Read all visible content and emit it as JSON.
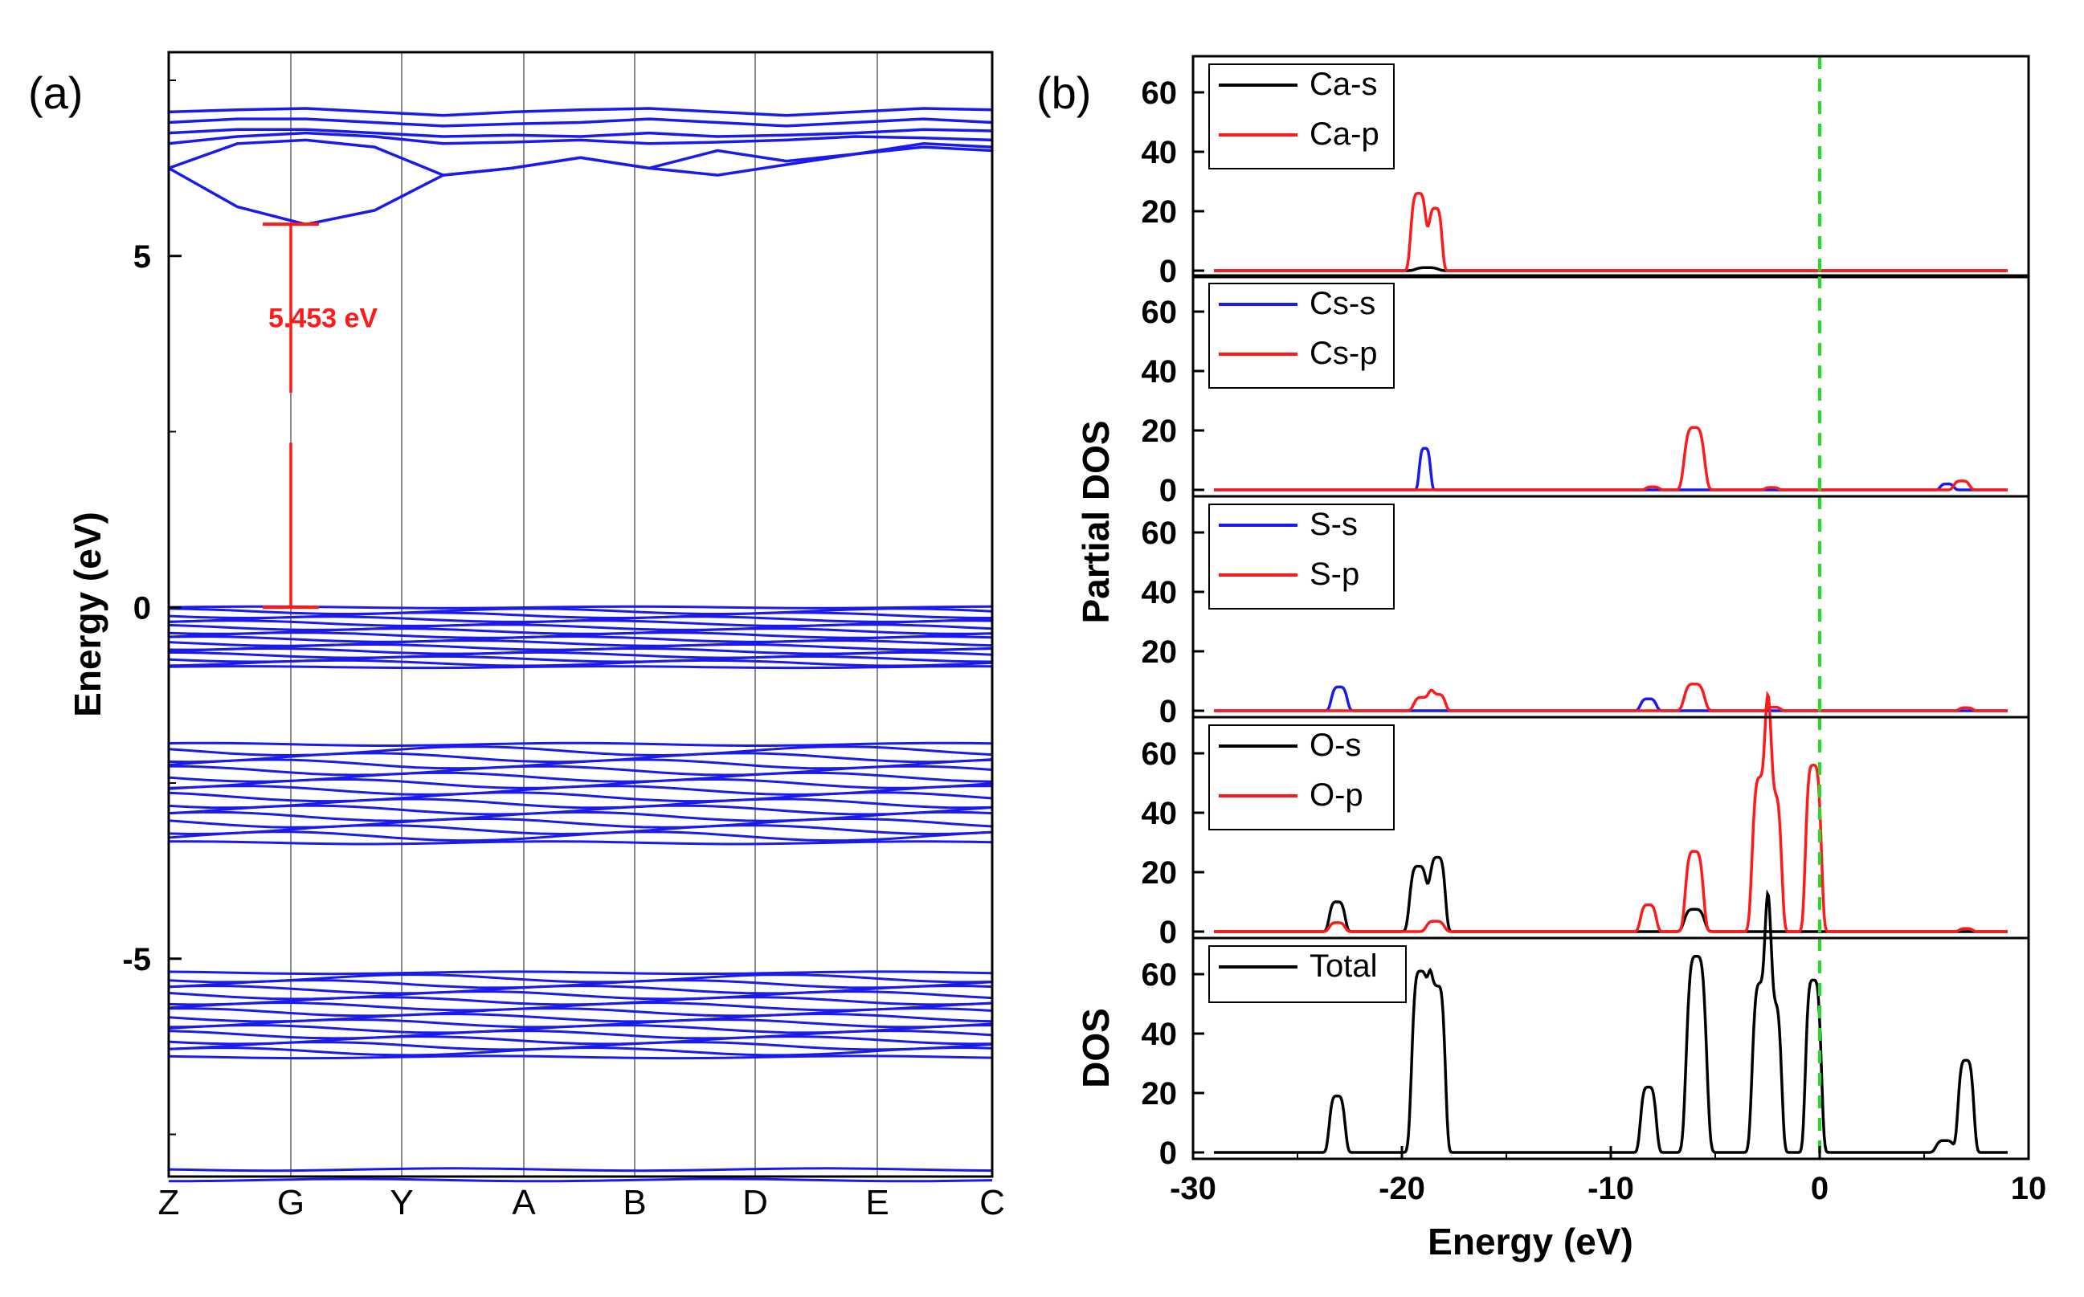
{
  "panel_labels": [
    "(a)",
    "(b)"
  ],
  "chart_data": [
    {
      "type": "line",
      "name": "band-structure",
      "ylabel": "Energy (eV)",
      "ylim": [
        -8.1,
        7.9
      ],
      "yticks": [
        5,
        0,
        -5
      ],
      "ytick_labels": [
        "5",
        "0",
        "-5"
      ],
      "kpoints": [
        "Z",
        "G",
        "Y",
        "A",
        "B",
        "D",
        "E",
        "C"
      ],
      "band_color": "#1a1aee",
      "gap_color": "#ff1a1a",
      "band_gap": {
        "value": 5.453,
        "label": "5.453 eV",
        "kpoint": "G",
        "vbm": 0.0,
        "cbm": 5.453
      },
      "conduction_bands": [
        {
          "name": "cb1",
          "values": [
            6.25,
            5.7,
            5.45,
            5.65,
            6.15,
            6.25,
            6.4,
            6.25,
            6.15,
            6.3,
            6.45,
            6.55,
            6.5
          ]
        },
        {
          "name": "cb2",
          "values": [
            6.25,
            6.6,
            6.65,
            6.55,
            6.15,
            6.25,
            6.4,
            6.25,
            6.5,
            6.35,
            6.45,
            6.6,
            6.55
          ]
        },
        {
          "name": "cb3",
          "values": [
            6.75,
            6.8,
            6.8,
            6.75,
            6.7,
            6.72,
            6.7,
            6.75,
            6.7,
            6.72,
            6.75,
            6.8,
            6.78
          ]
        },
        {
          "name": "cb4",
          "values": [
            6.9,
            6.95,
            6.95,
            6.9,
            6.85,
            6.88,
            6.9,
            6.95,
            6.9,
            6.85,
            6.9,
            6.95,
            6.9
          ]
        },
        {
          "name": "cb5",
          "values": [
            7.05,
            7.08,
            7.1,
            7.05,
            7.0,
            7.05,
            7.08,
            7.1,
            7.05,
            7.0,
            7.05,
            7.1,
            7.08
          ]
        },
        {
          "name": "cb6",
          "values": [
            6.6,
            6.7,
            6.75,
            6.7,
            6.6,
            6.62,
            6.65,
            6.6,
            6.62,
            6.65,
            6.7,
            6.68,
            6.65
          ]
        }
      ],
      "valence_groups": [
        {
          "name": "vb1",
          "top": 0.0,
          "bottom": -0.85
        },
        {
          "name": "vb2",
          "top": -1.95,
          "bottom": -3.35
        },
        {
          "name": "vb3",
          "top": -5.2,
          "bottom": -6.4
        },
        {
          "name": "vb4",
          "top": -8.0,
          "bottom": -8.15
        }
      ]
    },
    {
      "type": "line",
      "name": "density-of-states",
      "xlabel": "Energy (eV)",
      "xlim": [
        -30,
        10
      ],
      "xticks": [
        -30,
        -20,
        -10,
        0,
        10
      ],
      "fermi_level": 0,
      "fermi_color": "#22dd22",
      "ylabel_partial": "Partial DOS",
      "ylabel_total": "DOS",
      "panels": [
        {
          "name": "ca",
          "ylim": [
            0,
            70
          ],
          "yticks": [
            0,
            20,
            40,
            60
          ],
          "series": [
            {
              "name": "Ca-s",
              "color": "#000000",
              "peaks": [
                [
                  -18.8,
                  1,
                  0.5
                ]
              ]
            },
            {
              "name": "Ca-p",
              "color": "#ff1a1a",
              "peaks": [
                [
                  -19.2,
                  26,
                  0.35
                ],
                [
                  -18.4,
                  21,
                  0.3
                ]
              ]
            }
          ]
        },
        {
          "name": "cs",
          "ylim": [
            0,
            70
          ],
          "yticks": [
            0,
            20,
            40,
            60
          ],
          "series": [
            {
              "name": "Cs-s",
              "color": "#1a1aee",
              "peaks": [
                [
                  -18.9,
                  14,
                  0.25
                ],
                [
                  6.1,
                  2,
                  0.3
                ]
              ]
            },
            {
              "name": "Cs-p",
              "color": "#ff1a1a",
              "peaks": [
                [
                  -6.0,
                  21,
                  0.45
                ],
                [
                  -8.0,
                  1,
                  0.3
                ],
                [
                  -2.3,
                  0.8,
                  0.3
                ],
                [
                  6.8,
                  3,
                  0.35
                ]
              ]
            }
          ]
        },
        {
          "name": "s",
          "ylim": [
            0,
            70
          ],
          "yticks": [
            0,
            20,
            40,
            60
          ],
          "series": [
            {
              "name": "S-s",
              "color": "#1a1aee",
              "peaks": [
                [
                  -23.0,
                  8,
                  0.35
                ],
                [
                  -8.2,
                  4,
                  0.35
                ]
              ]
            },
            {
              "name": "S-p",
              "color": "#ff1a1a",
              "peaks": [
                [
                  -19.0,
                  4.5,
                  0.4
                ],
                [
                  -18.3,
                  5.5,
                  0.35
                ],
                [
                  -6.0,
                  9,
                  0.45
                ],
                [
                  -2.2,
                  1.2,
                  0.3
                ],
                [
                  7.0,
                  1,
                  0.3
                ]
              ]
            }
          ]
        },
        {
          "name": "o",
          "ylim": [
            0,
            70
          ],
          "yticks": [
            0,
            20,
            40,
            60
          ],
          "series": [
            {
              "name": "O-s",
              "color": "#000000",
              "peaks": [
                [
                  -23.1,
                  10,
                  0.35
                ],
                [
                  -19.2,
                  22,
                  0.4
                ],
                [
                  -18.3,
                  25,
                  0.35
                ],
                [
                  -6.0,
                  7.5,
                  0.45
                ]
              ]
            },
            {
              "name": "O-p",
              "color": "#ff1a1a",
              "peaks": [
                [
                  -23.1,
                  3,
                  0.35
                ],
                [
                  -18.4,
                  3.5,
                  0.4
                ],
                [
                  -8.2,
                  9,
                  0.35
                ],
                [
                  -6.0,
                  27,
                  0.4
                ],
                [
                  -2.8,
                  52,
                  0.4
                ],
                [
                  -2.2,
                  46,
                  0.35
                ],
                [
                  -0.3,
                  56,
                  0.35
                ],
                [
                  7.0,
                  1,
                  0.3
                ]
              ]
            }
          ]
        },
        {
          "name": "total",
          "ylim": [
            0,
            70
          ],
          "yticks": [
            0,
            20,
            40,
            60
          ],
          "series": [
            {
              "name": "Total",
              "color": "#000000",
              "peaks": [
                [
                  -23.1,
                  19,
                  0.35
                ],
                [
                  -19.1,
                  61,
                  0.4
                ],
                [
                  -18.3,
                  56,
                  0.35
                ],
                [
                  -8.2,
                  22,
                  0.35
                ],
                [
                  -5.9,
                  66,
                  0.45
                ],
                [
                  -2.8,
                  57,
                  0.4
                ],
                [
                  -2.2,
                  50,
                  0.35
                ],
                [
                  -0.3,
                  58,
                  0.35
                ],
                [
                  6.0,
                  4,
                  0.4
                ],
                [
                  7.0,
                  31,
                  0.35
                ]
              ]
            }
          ]
        }
      ]
    }
  ]
}
